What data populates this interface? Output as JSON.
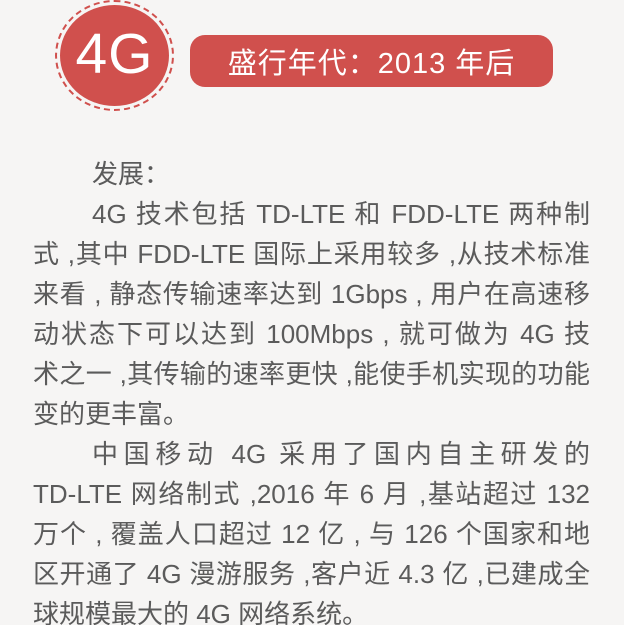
{
  "badge": {
    "label": "4G"
  },
  "banner": {
    "text": "盛行年代：2013 年后"
  },
  "body": {
    "heading": "发展：",
    "lines": [
      {
        "text": "发展："
      },
      {
        "text": "4G 技术包括 TD-LTE 和 FDD-LTE 两种制"
      },
      {
        "text": "式 ,其中 FDD-LTE 国际上采用较多 ,从技术标准"
      },
      {
        "text": "来看 , 静态传输速率达到 1Gbps , 用户在高速移"
      },
      {
        "text": "动状态下可以达到 100Mbps , 就可做为 4G 技"
      },
      {
        "text": "术之一 ,其传输的速率更快 ,能使手机实现的功能"
      },
      {
        "text": "变的更丰富。"
      },
      {
        "text": "中国移动 4G 采用了国内自主研发的"
      },
      {
        "text": "TD-LTE 网络制式 ,2016 年 6 月 ,基站超过 132"
      },
      {
        "text": "万个 , 覆盖人口超过 12 亿 , 与 126 个国家和地"
      },
      {
        "text": "区开通了 4G 漫游服务 ,客户近 4.3 亿 ,已建成全"
      },
      {
        "text": "球规模最大的 4G 网络系统。"
      }
    ]
  },
  "colors": {
    "accent_red": "#d0504d",
    "background": "#f6f5f4",
    "body_text": "#5b5b5b",
    "badge_text": "#ffffff"
  }
}
